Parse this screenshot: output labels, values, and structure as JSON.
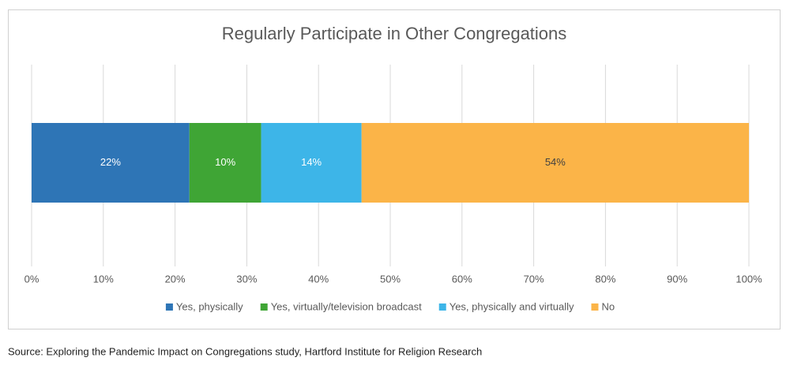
{
  "chart_data": {
    "type": "bar",
    "orientation": "horizontal",
    "stacked": true,
    "title": "Regularly Participate in Other Congregations",
    "categories": [
      null
    ],
    "series": [
      {
        "name": "Yes, physically",
        "color": "#2e75b6",
        "values": [
          22
        ],
        "value_labels": [
          "22%"
        ]
      },
      {
        "name": "Yes, virtually/television broadcast",
        "color": "#3fa535",
        "values": [
          10
        ],
        "value_labels": [
          "10%"
        ]
      },
      {
        "name": "Yes, physically and virtually",
        "color": "#3db5e8",
        "values": [
          14
        ],
        "value_labels": [
          "14%"
        ]
      },
      {
        "name": "No",
        "color": "#fbb448",
        "values": [
          54
        ],
        "value_labels": [
          "54%"
        ]
      }
    ],
    "xlim": [
      0,
      100
    ],
    "xticks": [
      {
        "value": 0,
        "label": "0%"
      },
      {
        "value": 10,
        "label": "10%"
      },
      {
        "value": 20,
        "label": "20%"
      },
      {
        "value": 30,
        "label": "30%"
      },
      {
        "value": 40,
        "label": "40%"
      },
      {
        "value": 50,
        "label": "50%"
      },
      {
        "value": 60,
        "label": "60%"
      },
      {
        "value": 70,
        "label": "70%"
      },
      {
        "value": 80,
        "label": "80%"
      },
      {
        "value": 90,
        "label": "90%"
      },
      {
        "value": 100,
        "label": "100%"
      }
    ],
    "grid": true,
    "legend": "bottom",
    "source": "Source: Exploring the Pandemic Impact on Congregations study, Hartford Institute for Religion Research"
  }
}
